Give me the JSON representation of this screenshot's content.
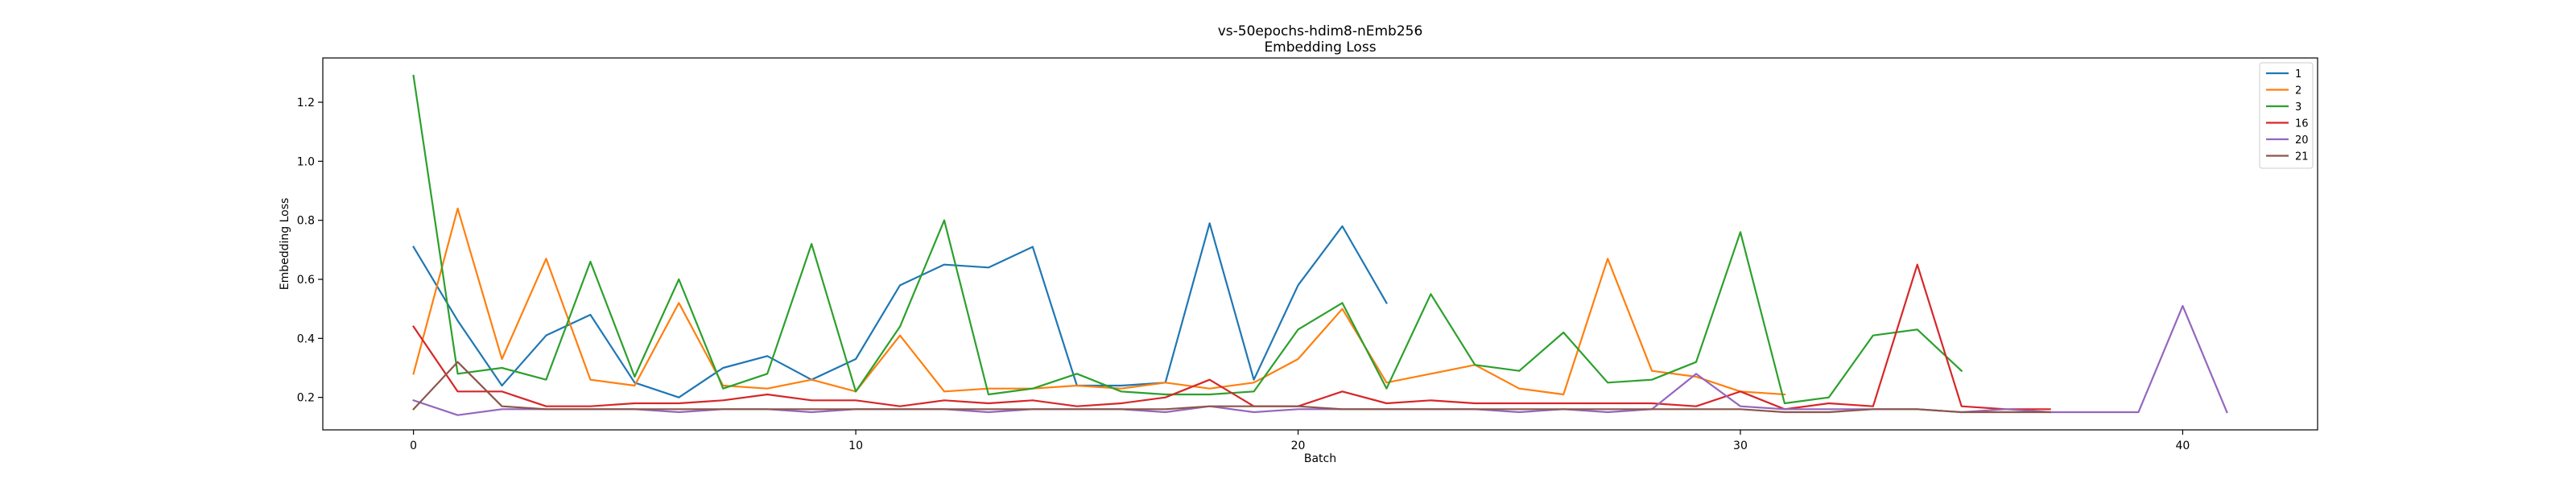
{
  "chart_data": {
    "type": "line",
    "title": "vs-50epochs-hdim8-nEmb256",
    "subtitle": "Embedding Loss",
    "xlabel": "Batch",
    "ylabel": "Embedding Loss",
    "xlim": [
      -2.05,
      43.05
    ],
    "ylim": [
      0.09,
      1.35
    ],
    "xticks": [
      0,
      10,
      20,
      30,
      40
    ],
    "yticks": [
      0.2,
      0.4,
      0.6,
      0.8,
      1.0,
      1.2
    ],
    "ytick_labels": [
      "0.2",
      "0.4",
      "0.6",
      "0.8",
      "1.0",
      "1.2"
    ],
    "grid": false,
    "legend_position": "top-right",
    "series": [
      {
        "name": "1",
        "color": "#1f77b4",
        "values": [
          0.71,
          0.46,
          0.24,
          0.41,
          0.48,
          0.25,
          0.2,
          0.3,
          0.34,
          0.26,
          0.33,
          0.58,
          0.65,
          0.64,
          0.71,
          0.24,
          0.24,
          0.25,
          0.79,
          0.26,
          0.58,
          0.78,
          0.52
        ]
      },
      {
        "name": "2",
        "color": "#ff7f0e",
        "values": [
          0.28,
          0.84,
          0.33,
          0.67,
          0.26,
          0.24,
          0.52,
          0.24,
          0.23,
          0.26,
          0.22,
          0.41,
          0.22,
          0.23,
          0.23,
          0.24,
          0.23,
          0.25,
          0.23,
          0.25,
          0.33,
          0.5,
          0.25,
          0.28,
          0.31,
          0.23,
          0.21,
          0.67,
          0.29,
          0.27,
          0.22,
          0.21
        ]
      },
      {
        "name": "3",
        "color": "#2ca02c",
        "values": [
          1.29,
          0.28,
          0.3,
          0.26,
          0.66,
          0.27,
          0.6,
          0.23,
          0.28,
          0.72,
          0.22,
          0.44,
          0.8,
          0.21,
          0.23,
          0.28,
          0.22,
          0.21,
          0.21,
          0.22,
          0.43,
          0.52,
          0.23,
          0.55,
          0.31,
          0.29,
          0.42,
          0.25,
          0.26,
          0.32,
          0.76,
          0.18,
          0.2,
          0.41,
          0.43,
          0.29
        ]
      },
      {
        "name": "16",
        "color": "#d62728",
        "values": [
          0.44,
          0.22,
          0.22,
          0.17,
          0.17,
          0.18,
          0.18,
          0.19,
          0.21,
          0.19,
          0.19,
          0.17,
          0.19,
          0.18,
          0.19,
          0.17,
          0.18,
          0.2,
          0.26,
          0.17,
          0.17,
          0.22,
          0.18,
          0.19,
          0.18,
          0.18,
          0.18,
          0.18,
          0.18,
          0.17,
          0.22,
          0.16,
          0.18,
          0.17,
          0.65,
          0.17,
          0.16,
          0.16
        ]
      },
      {
        "name": "20",
        "color": "#9467bd",
        "values": [
          0.19,
          0.14,
          0.16,
          0.16,
          0.16,
          0.16,
          0.15,
          0.16,
          0.16,
          0.15,
          0.16,
          0.16,
          0.16,
          0.15,
          0.16,
          0.16,
          0.16,
          0.15,
          0.17,
          0.15,
          0.16,
          0.16,
          0.16,
          0.16,
          0.16,
          0.15,
          0.16,
          0.15,
          0.16,
          0.28,
          0.17,
          0.16,
          0.16,
          0.16,
          0.16,
          0.15,
          0.16,
          0.15,
          0.15,
          0.15,
          0.51,
          0.15
        ]
      },
      {
        "name": "21",
        "color": "#8c564b",
        "values": [
          0.16,
          0.32,
          0.17,
          0.16,
          0.16,
          0.16,
          0.16,
          0.16,
          0.16,
          0.16,
          0.16,
          0.16,
          0.16,
          0.16,
          0.16,
          0.16,
          0.16,
          0.16,
          0.17,
          0.17,
          0.17,
          0.16,
          0.16,
          0.16,
          0.16,
          0.16,
          0.16,
          0.16,
          0.16,
          0.16,
          0.16,
          0.15,
          0.15,
          0.16,
          0.16,
          0.15,
          0.15,
          0.15
        ]
      }
    ]
  }
}
